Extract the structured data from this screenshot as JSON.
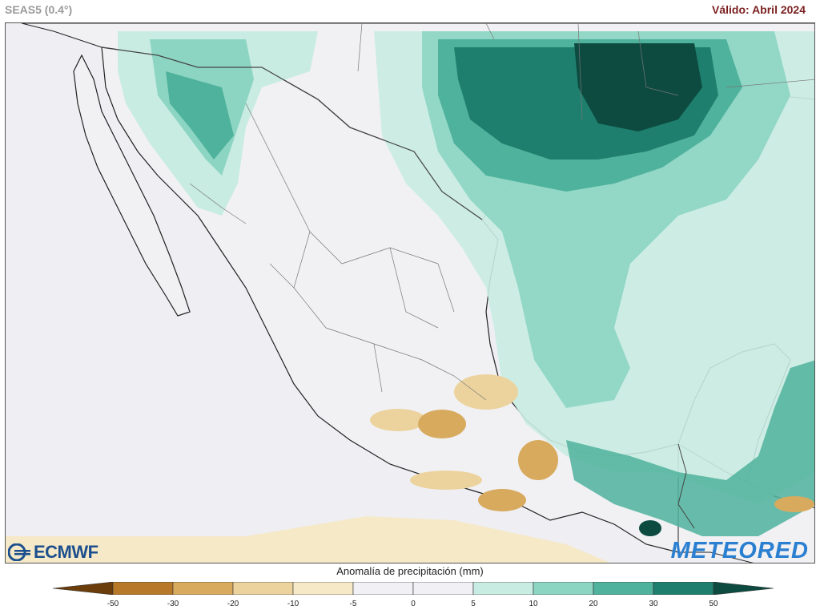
{
  "header": {
    "model": "SEAS5 (0.4°)",
    "valid": "Válido: Abril 2024"
  },
  "map": {
    "region": "Mexico",
    "ocean_color": "#eeeef3",
    "land_color": "#f1f1f4"
  },
  "logos": {
    "ecmwf": "ECMWF",
    "meteored": "METEORED"
  },
  "colorbar": {
    "title": "Anomalía de precipitación (mm)",
    "ticks": [
      "-50",
      "-30",
      "-20",
      "-10",
      "-5",
      "0",
      "5",
      "10",
      "20",
      "30",
      "50"
    ],
    "colors": [
      "#6a3d0a",
      "#b8782a",
      "#d8aa5e",
      "#ecd39e",
      "#f6e9c8",
      "#f0f0f5",
      "#f0f0f5",
      "#c9ece2",
      "#8dd5c3",
      "#4fb29c",
      "#1f7f6e",
      "#0d4b40"
    ]
  }
}
